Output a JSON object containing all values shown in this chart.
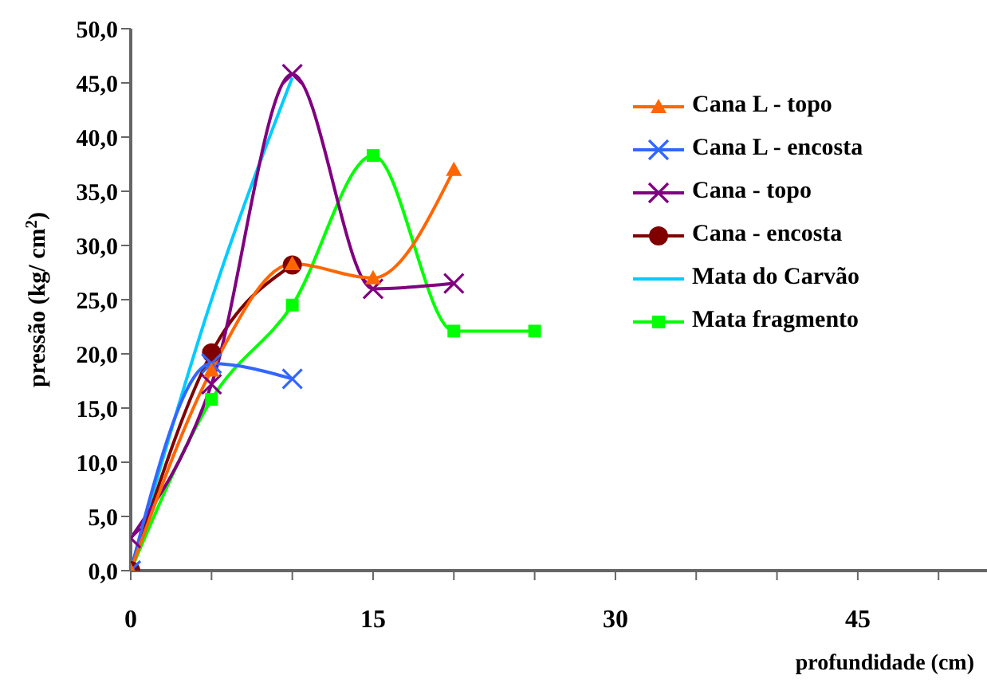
{
  "chart_data": {
    "type": "line",
    "xlabel": "profundidade (cm)",
    "ylabel": "pressão (kg/ cm$^{2}$)",
    "xlim": [
      0,
      53
    ],
    "xticks": [
      0,
      {
        "value": 5,
        "label": null
      },
      {
        "value": 10,
        "label": null
      },
      15,
      {
        "value": 20,
        "label": null
      },
      {
        "value": 25,
        "label": null
      },
      30,
      {
        "value": 35,
        "label": null
      },
      {
        "value": 40,
        "label": null
      },
      45,
      {
        "value": 50,
        "label": null
      }
    ],
    "ylim": [
      0,
      50
    ],
    "yticks": [
      {
        "value": 0,
        "label": "0,0"
      },
      {
        "value": 5,
        "label": "5,0"
      },
      {
        "value": 10,
        "label": "10,0"
      },
      {
        "value": 15,
        "label": "15,0"
      },
      {
        "value": 20,
        "label": "20,0"
      },
      {
        "value": 25,
        "label": "25,0"
      },
      {
        "value": 30,
        "label": "30,0"
      },
      {
        "value": 35,
        "label": "35,0"
      },
      {
        "value": 40,
        "label": "40,0"
      },
      {
        "value": 45,
        "label": "45,0"
      },
      {
        "value": 50,
        "label": "50,0"
      }
    ],
    "grid": false,
    "legend": "top right",
    "series": [
      {
        "name": "Cana L - topo",
        "color": "#ff6600",
        "marker": "triangle",
        "x": [
          0,
          5,
          10,
          15,
          20
        ],
        "values": [
          0,
          18.5,
          28.3,
          27.0,
          37.0
        ]
      },
      {
        "name": "Cana L - encosta",
        "color": "#3366ff",
        "marker": "cross",
        "x": [
          0,
          5,
          10
        ],
        "values": [
          0,
          19.1,
          17.7
        ]
      },
      {
        "name": "Cana - topo",
        "color": "#800080",
        "marker": "cross",
        "x": [
          0,
          5,
          10,
          15,
          20
        ],
        "values": [
          3.0,
          17.2,
          45.8,
          26.0,
          26.5
        ]
      },
      {
        "name": "Cana - encosta",
        "color": "#800000",
        "marker": "circle",
        "x": [
          0,
          5,
          10
        ],
        "values": [
          0,
          20.1,
          28.2
        ]
      },
      {
        "name": "Mata do Carvão",
        "color": "#00ccff",
        "marker": "none",
        "x": [
          0,
          5,
          10
        ],
        "values": [
          0,
          25.0,
          45.5
        ]
      },
      {
        "name": "Mata fragmento",
        "color": "#00ff00",
        "marker": "square",
        "x": [
          0,
          5,
          10,
          15,
          20,
          25
        ],
        "values": [
          0,
          15.8,
          24.5,
          38.3,
          22.1,
          22.1
        ]
      }
    ]
  }
}
